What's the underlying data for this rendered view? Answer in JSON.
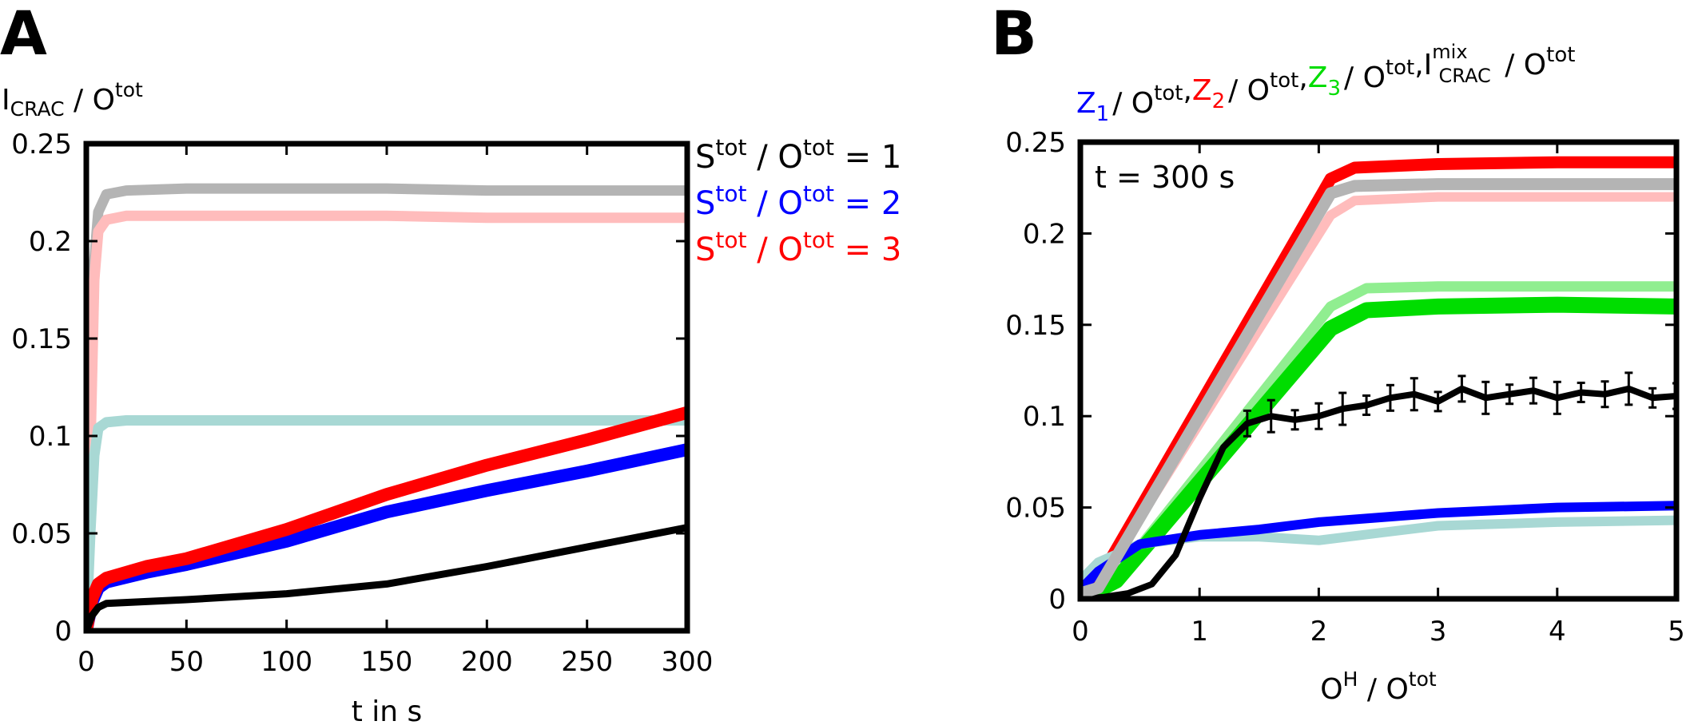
{
  "chart_data": [
    {
      "type": "line",
      "panel_label": "A",
      "title": "",
      "ylabel": {
        "main": "I",
        "sub": "CRAC",
        "div": " / O",
        "sup": "tot"
      },
      "xlabel": "t in s",
      "xlim": [
        0,
        300
      ],
      "ylim": [
        0,
        0.25
      ],
      "x_ticks": [
        0,
        50,
        100,
        150,
        200,
        250,
        300
      ],
      "y_ticks": [
        0,
        0.05,
        0.1,
        0.15,
        0.2,
        0.25
      ],
      "y_tick_labels": [
        "0",
        "0.05",
        "0.1",
        "0.15",
        "0.2",
        "0.25"
      ],
      "legend": [
        {
          "parts": [
            "S",
            "tot",
            " / O",
            "tot",
            " = 1"
          ],
          "color": "#000000"
        },
        {
          "parts": [
            "S",
            "tot",
            " / O",
            "tot",
            " = 2"
          ],
          "color": "#0000ff"
        },
        {
          "parts": [
            "S",
            "tot",
            " / O",
            "tot",
            " = 3"
          ],
          "color": "#ff0000"
        }
      ],
      "series": [
        {
          "name": "S/O=1 (light)",
          "color": "#b4b4b4",
          "width": 13,
          "x": [
            0,
            2,
            4,
            6,
            10,
            20,
            50,
            100,
            150,
            200,
            250,
            300
          ],
          "y": [
            0,
            0.1,
            0.19,
            0.215,
            0.224,
            0.226,
            0.227,
            0.227,
            0.227,
            0.226,
            0.226,
            0.226
          ]
        },
        {
          "name": "S/O=3 (light)",
          "color": "#ffbcbc",
          "width": 13,
          "x": [
            0,
            2,
            4,
            6,
            10,
            20,
            50,
            100,
            150,
            200,
            250,
            300
          ],
          "y": [
            0,
            0.09,
            0.18,
            0.205,
            0.211,
            0.213,
            0.213,
            0.213,
            0.213,
            0.212,
            0.212,
            0.212
          ]
        },
        {
          "name": "S/O=2 (light)",
          "color": "#a8d8d4",
          "width": 13,
          "x": [
            0,
            2,
            4,
            6,
            10,
            20,
            50,
            100,
            150,
            200,
            250,
            300
          ],
          "y": [
            0,
            0.05,
            0.09,
            0.104,
            0.107,
            0.108,
            0.108,
            0.108,
            0.108,
            0.108,
            0.108,
            0.108
          ]
        },
        {
          "name": "S/O=2",
          "color": "#0000ff",
          "width": 16,
          "x": [
            0,
            3,
            6,
            10,
            30,
            50,
            100,
            150,
            200,
            250,
            300
          ],
          "y": [
            0,
            0.015,
            0.022,
            0.025,
            0.03,
            0.034,
            0.046,
            0.061,
            0.072,
            0.082,
            0.093
          ]
        },
        {
          "name": "S/O=3",
          "color": "#ff0000",
          "width": 16,
          "x": [
            0,
            3,
            6,
            10,
            30,
            50,
            100,
            150,
            200,
            250,
            300
          ],
          "y": [
            0,
            0.017,
            0.024,
            0.027,
            0.033,
            0.037,
            0.052,
            0.07,
            0.085,
            0.098,
            0.112
          ]
        },
        {
          "name": "S/O=1",
          "color": "#000000",
          "width": 9,
          "x": [
            0,
            3,
            6,
            10,
            30,
            50,
            100,
            150,
            200,
            250,
            300
          ],
          "y": [
            0,
            0.008,
            0.012,
            0.014,
            0.015,
            0.016,
            0.019,
            0.024,
            0.033,
            0.043,
            0.053
          ]
        }
      ]
    },
    {
      "type": "line",
      "panel_label": "B",
      "title": "",
      "ylabel_parts": [
        {
          "main": "Z",
          "sub": "1",
          "color": "#0000ff"
        },
        {
          "main": "Z",
          "sub": "2",
          "color": "#ff0000"
        },
        {
          "main": "Z",
          "sub": "3",
          "color": "#00dd00"
        },
        {
          "main": "I",
          "sub": "CRAC",
          "sup_over": "mix",
          "color": "#000000"
        }
      ],
      "ylabel_div": "/ O",
      "ylabel_sup": "tot",
      "ylabel_sep": ",",
      "xlabel": {
        "main": "O",
        "sup": "H",
        "div": " / O",
        "sup2": "tot"
      },
      "annotation": "t = 300 s",
      "xlim": [
        0,
        5
      ],
      "ylim": [
        0,
        0.25
      ],
      "x_ticks": [
        0,
        1,
        2,
        3,
        4,
        5
      ],
      "y_ticks": [
        0,
        0.05,
        0.1,
        0.15,
        0.2,
        0.25
      ],
      "y_tick_labels": [
        "0",
        "0.05",
        "0.1",
        "0.15",
        "0.2",
        "0.25"
      ],
      "series": [
        {
          "name": "Z2 (light)",
          "color": "#ffbcbc",
          "width": 12,
          "x": [
            0,
            0.15,
            2.1,
            2.3,
            3,
            4,
            5
          ],
          "y": [
            0.005,
            0.008,
            0.21,
            0.218,
            0.22,
            0.22,
            0.22
          ]
        },
        {
          "name": "Z2",
          "color": "#ff0000",
          "width": 15,
          "x": [
            0,
            0.15,
            2.1,
            2.3,
            3,
            4,
            5
          ],
          "y": [
            0.005,
            0.01,
            0.23,
            0.236,
            0.238,
            0.239,
            0.239
          ]
        },
        {
          "name": "Z3 (light)",
          "color": "#90ee90",
          "width": 13,
          "x": [
            0,
            0.3,
            2.1,
            2.4,
            3,
            4,
            5
          ],
          "y": [
            0,
            0.012,
            0.16,
            0.17,
            0.171,
            0.171,
            0.171
          ]
        },
        {
          "name": "Z3",
          "color": "#00dd00",
          "width": 20,
          "x": [
            0,
            0.3,
            2.1,
            2.4,
            3,
            4,
            5
          ],
          "y": [
            0,
            0.01,
            0.148,
            0.158,
            0.16,
            0.161,
            0.16
          ]
        },
        {
          "name": "Z1 (light)",
          "color": "#a8d8d4",
          "width": 12,
          "x": [
            0,
            0.15,
            0.5,
            1,
            1.5,
            2,
            2.5,
            3,
            4,
            5
          ],
          "y": [
            0.01,
            0.02,
            0.03,
            0.034,
            0.034,
            0.032,
            0.036,
            0.04,
            0.042,
            0.043
          ]
        },
        {
          "name": "Z1",
          "color": "#0000ff",
          "width": 12,
          "x": [
            0,
            0.15,
            0.5,
            1,
            1.5,
            2,
            3,
            4,
            5
          ],
          "y": [
            0.005,
            0.015,
            0.03,
            0.035,
            0.038,
            0.042,
            0.047,
            0.05,
            0.051
          ]
        },
        {
          "name": "I_CRAC_mix",
          "color": "#000000",
          "width": 8,
          "error_bars": true,
          "x": [
            0,
            0.2,
            0.4,
            0.6,
            0.8,
            1.0,
            1.2,
            1.4,
            1.6,
            1.8,
            2.0,
            2.2,
            2.4,
            2.6,
            2.8,
            3.0,
            3.2,
            3.4,
            3.6,
            3.8,
            4.0,
            4.2,
            4.4,
            4.6,
            4.8,
            5.0
          ],
          "y": [
            0,
            0.001,
            0.003,
            0.008,
            0.024,
            0.055,
            0.083,
            0.096,
            0.1,
            0.098,
            0.1,
            0.104,
            0.106,
            0.11,
            0.112,
            0.108,
            0.115,
            0.11,
            0.112,
            0.114,
            0.11,
            0.113,
            0.112,
            0.115,
            0.11,
            0.111
          ]
        },
        {
          "name": "I_CRAC_mix (total)",
          "color": "#b4b4b4",
          "width": 15,
          "x": [
            0,
            0.15,
            2.1,
            2.3,
            3,
            4,
            5
          ],
          "y": [
            0.003,
            0.006,
            0.222,
            0.226,
            0.227,
            0.227,
            0.227
          ]
        }
      ]
    }
  ]
}
